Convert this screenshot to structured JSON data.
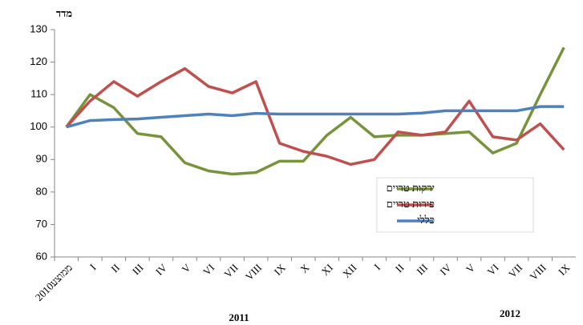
{
  "chart_data": {
    "type": "line",
    "y_label": "מדד",
    "year_labels": [
      "2011",
      "2012"
    ],
    "categories": [
      "ממוצע2010",
      "I",
      "II",
      "III",
      "IV",
      "V",
      "VI",
      "VII",
      "VIII",
      "IX",
      "X",
      "XI",
      "XII",
      "I",
      "II",
      "III",
      "IV",
      "V",
      "VI",
      "VII",
      "VIII",
      "IX"
    ],
    "series": [
      {
        "name": "ירקות טריים",
        "color": "#77933c",
        "values": [
          100,
          110,
          106,
          98,
          97,
          89,
          86.5,
          85.5,
          86,
          89.5,
          89.5,
          97.5,
          103,
          97,
          97.5,
          97.5,
          98,
          98.5,
          92,
          95,
          110,
          124.5
        ]
      },
      {
        "name": "פירות טריים",
        "color": "#c0504d",
        "values": [
          100,
          108,
          114,
          109.5,
          114,
          118,
          112.5,
          110.5,
          114,
          95,
          92.5,
          91,
          88.5,
          90,
          98.5,
          97.5,
          98.5,
          108,
          97,
          96,
          101,
          93
        ]
      },
      {
        "name": "כללי",
        "color": "#4f81bd",
        "values": [
          100,
          102,
          102.3,
          102.5,
          103,
          103.5,
          104,
          103.5,
          104.2,
          104,
          104,
          104,
          104,
          104,
          104,
          104.3,
          105,
          105,
          105,
          105,
          106.3,
          106.3
        ]
      }
    ],
    "ylim": [
      60,
      130
    ],
    "yticks": [
      60,
      70,
      80,
      90,
      100,
      110,
      120,
      130
    ],
    "grid": false
  }
}
